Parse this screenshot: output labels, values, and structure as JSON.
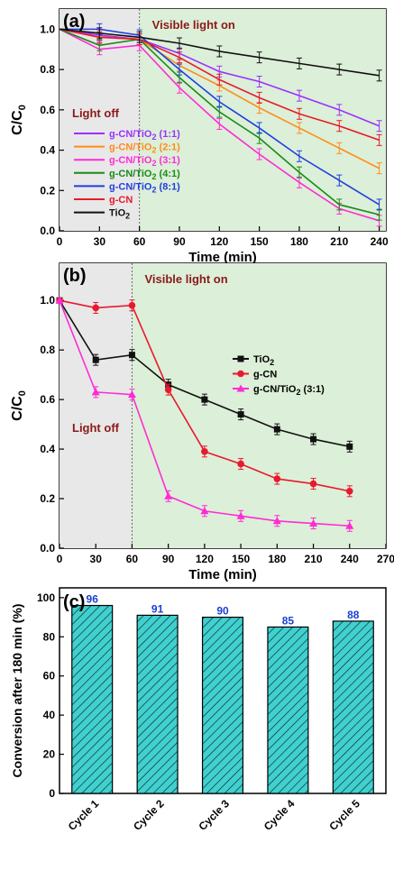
{
  "chart_data": [
    {
      "panel_label": "(a)",
      "type": "line",
      "xlabel": "Time (min)",
      "ylabel_main": "C/C",
      "ylabel_sub": "0",
      "xlim": [
        0,
        245
      ],
      "ylim": [
        0,
        1.1
      ],
      "xticks": [
        0,
        30,
        60,
        90,
        120,
        150,
        180,
        210,
        240
      ],
      "yticks": [
        0.0,
        0.2,
        0.4,
        0.6,
        0.8,
        1.0
      ],
      "ytick_labels": [
        "0.0",
        "0.2",
        "0.4",
        "0.6",
        "0.8",
        "1.0"
      ],
      "x": [
        0,
        30,
        60,
        90,
        120,
        150,
        180,
        210,
        240
      ],
      "annotations": {
        "light_off": "Light off",
        "light_on": "Visible light on",
        "boundary_x": 60,
        "dark_color": "#e8e8e8",
        "light_color": "#dcefd8",
        "text_color": "#8b1a1a"
      },
      "legend_position": "center-left",
      "series": [
        {
          "name_parts": [
            "g-CN/TiO",
            "2",
            " (1:1)"
          ],
          "color": "#9b30ff",
          "values": [
            1.0,
            0.97,
            0.95,
            0.88,
            0.79,
            0.74,
            0.67,
            0.6,
            0.52
          ]
        },
        {
          "name_parts": [
            "g-CN/TiO",
            "2",
            " (2:1)"
          ],
          "color": "#ff8c1a",
          "values": [
            1.0,
            0.96,
            0.95,
            0.82,
            0.72,
            0.61,
            0.51,
            0.41,
            0.31
          ]
        },
        {
          "name_parts": [
            "g-CN/TiO",
            "2",
            " (3:1)"
          ],
          "color": "#ff2bd6",
          "values": [
            1.0,
            0.9,
            0.92,
            0.71,
            0.53,
            0.38,
            0.24,
            0.11,
            0.05
          ]
        },
        {
          "name_parts": [
            "g-CN/TiO",
            "2",
            " (4:1)"
          ],
          "color": "#1a8a1a",
          "values": [
            1.0,
            0.92,
            0.95,
            0.76,
            0.59,
            0.46,
            0.29,
            0.13,
            0.08
          ]
        },
        {
          "name_parts": [
            "g-CN/TiO",
            "2",
            " (8:1)"
          ],
          "color": "#1f3fe0",
          "values": [
            1.0,
            1.0,
            0.97,
            0.8,
            0.64,
            0.51,
            0.37,
            0.25,
            0.13
          ]
        },
        {
          "name_parts": [
            "g-CN"
          ],
          "color": "#e8192c",
          "values": [
            1.0,
            0.96,
            0.95,
            0.86,
            0.75,
            0.66,
            0.58,
            0.52,
            0.45
          ]
        },
        {
          "name_parts": [
            "TiO",
            "2",
            ""
          ],
          "color": "#111111",
          "values": [
            1.0,
            0.98,
            0.96,
            0.93,
            0.89,
            0.86,
            0.83,
            0.8,
            0.77
          ]
        }
      ]
    },
    {
      "panel_label": "(b)",
      "type": "line",
      "xlabel": "Time (min)",
      "ylabel_main": "C/C",
      "ylabel_sub": "0",
      "xlim": [
        0,
        270
      ],
      "ylim": [
        0,
        1.15
      ],
      "xticks": [
        0,
        30,
        60,
        90,
        120,
        150,
        180,
        210,
        240,
        270
      ],
      "yticks": [
        0.0,
        0.2,
        0.4,
        0.6,
        0.8,
        1.0
      ],
      "ytick_labels": [
        "0.0",
        "0.2",
        "0.4",
        "0.6",
        "0.8",
        "1.0"
      ],
      "x": [
        0,
        30,
        60,
        90,
        120,
        150,
        180,
        210,
        240
      ],
      "annotations": {
        "light_off": "Light off",
        "light_on": "Visible light on",
        "boundary_x": 60,
        "dark_color": "#e8e8e8",
        "light_color": "#dcefd8",
        "text_color": "#8b1a1a"
      },
      "legend_position": "center-right",
      "series": [
        {
          "name_parts": [
            "TiO",
            "2",
            ""
          ],
          "color": "#111111",
          "marker": "square",
          "values": [
            1.0,
            0.76,
            0.78,
            0.66,
            0.6,
            0.54,
            0.48,
            0.44,
            0.41
          ]
        },
        {
          "name_parts": [
            "g-CN"
          ],
          "color": "#e8192c",
          "marker": "circle",
          "values": [
            1.0,
            0.97,
            0.98,
            0.64,
            0.39,
            0.34,
            0.28,
            0.26,
            0.23
          ]
        },
        {
          "name_parts": [
            "g-CN/TiO",
            "2",
            " (3:1)"
          ],
          "color": "#ff2bd6",
          "marker": "triangle",
          "values": [
            1.0,
            0.63,
            0.62,
            0.21,
            0.15,
            0.13,
            0.11,
            0.1,
            0.09
          ]
        }
      ]
    },
    {
      "panel_label": "(c)",
      "type": "bar",
      "ylabel": "Conversion after 180 min (%)",
      "ylim": [
        0,
        105
      ],
      "yticks": [
        0,
        20,
        40,
        60,
        80,
        100
      ],
      "categories": [
        "Cycle 1",
        "Cycle 2",
        "Cycle 3",
        "Cycle 4",
        "Cycle 5"
      ],
      "values": [
        96,
        91,
        90,
        85,
        88
      ],
      "value_labels": [
        "96",
        "91",
        "90",
        "85",
        "88"
      ],
      "bar_color": "#3fd1cf",
      "hatch_color": "#1a2a2a",
      "label_color": "#1a3fd6"
    }
  ]
}
